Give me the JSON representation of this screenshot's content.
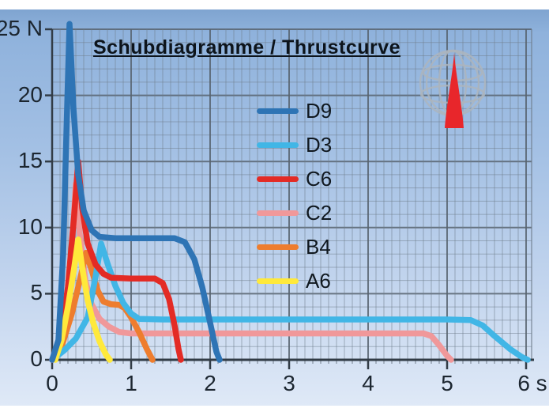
{
  "slide": {
    "background_top_color": "#8fb2dc",
    "background_bottom_color": "#dfe9f7",
    "page_border_color": "#ffffff"
  },
  "logo": {
    "globe_color": "#adb5bd",
    "rocket_color": "#e8262b"
  },
  "chart_data": {
    "type": "line",
    "title": "Schubdiagramme / Thrustcurve",
    "xlabel": "s",
    "ylabel": "N",
    "xlim": [
      0,
      6.07
    ],
    "ylim": [
      0,
      25
    ],
    "x_ticks": [
      0,
      1,
      2,
      3,
      4,
      5,
      6
    ],
    "x_tick_labels": [
      "0",
      "1",
      "2",
      "3",
      "4",
      "5",
      "6 s"
    ],
    "y_ticks": [
      0,
      5,
      10,
      15,
      20,
      25
    ],
    "y_tick_labels": [
      "0",
      "5",
      "10",
      "15",
      "20",
      "25 N"
    ],
    "minor_x_step": 0.1,
    "minor_y_step": 1,
    "grid": {
      "minor_color": "#6e7b89",
      "major_color": "#57636f",
      "axis_color": "#323c46"
    },
    "legend_position": "upper-middle",
    "z_order": [
      "C2",
      "B4",
      "D3",
      "C6",
      "A6",
      "D9"
    ],
    "series": [
      {
        "name": "D9",
        "color": "#2e74b5",
        "peak_thrust_n": 25.4,
        "peak_time_s": 0.22,
        "sustain_thrust_n": 9.2,
        "burn_time_s": 2.12,
        "points": [
          [
            0,
            0
          ],
          [
            0.08,
            1.5
          ],
          [
            0.14,
            8
          ],
          [
            0.18,
            17
          ],
          [
            0.22,
            25.4
          ],
          [
            0.27,
            19
          ],
          [
            0.33,
            14
          ],
          [
            0.4,
            11.3
          ],
          [
            0.5,
            9.8
          ],
          [
            0.6,
            9.3
          ],
          [
            0.8,
            9.2
          ],
          [
            1.2,
            9.2
          ],
          [
            1.55,
            9.2
          ],
          [
            1.68,
            8.9
          ],
          [
            1.8,
            7.6
          ],
          [
            1.9,
            5.5
          ],
          [
            2.0,
            2.8
          ],
          [
            2.08,
            0.6
          ],
          [
            2.12,
            0
          ]
        ]
      },
      {
        "name": "D3",
        "color": "#41b6e6",
        "peak_thrust_n": 8.8,
        "peak_time_s": 0.62,
        "sustain_thrust_n": 3.05,
        "burn_time_s": 6.02,
        "points": [
          [
            0,
            0
          ],
          [
            0.15,
            0.7
          ],
          [
            0.3,
            1.6
          ],
          [
            0.45,
            3.2
          ],
          [
            0.55,
            6.3
          ],
          [
            0.62,
            8.8
          ],
          [
            0.7,
            7.3
          ],
          [
            0.8,
            5.6
          ],
          [
            0.9,
            4.3
          ],
          [
            1.0,
            3.5
          ],
          [
            1.1,
            3.1
          ],
          [
            1.4,
            3.05
          ],
          [
            3.0,
            3.05
          ],
          [
            5.0,
            3.05
          ],
          [
            5.3,
            3.0
          ],
          [
            5.45,
            2.6
          ],
          [
            5.6,
            1.8
          ],
          [
            5.8,
            0.8
          ],
          [
            5.95,
            0.2
          ],
          [
            6.02,
            0
          ]
        ]
      },
      {
        "name": "C6",
        "color": "#e32b25",
        "peak_thrust_n": 15.0,
        "peak_time_s": 0.33,
        "sustain_thrust_n": 6.15,
        "burn_time_s": 1.63,
        "points": [
          [
            0,
            0
          ],
          [
            0.1,
            1.2
          ],
          [
            0.2,
            5.5
          ],
          [
            0.28,
            11
          ],
          [
            0.33,
            15
          ],
          [
            0.38,
            11.5
          ],
          [
            0.45,
            8.8
          ],
          [
            0.55,
            7.2
          ],
          [
            0.65,
            6.5
          ],
          [
            0.75,
            6.2
          ],
          [
            1.0,
            6.15
          ],
          [
            1.3,
            6.15
          ],
          [
            1.4,
            5.8
          ],
          [
            1.48,
            4.6
          ],
          [
            1.55,
            2.6
          ],
          [
            1.6,
            0.8
          ],
          [
            1.63,
            0
          ]
        ]
      },
      {
        "name": "C2",
        "color": "#f0989a",
        "peak_thrust_n": 13.3,
        "peak_time_s": 0.3,
        "sustain_thrust_n": 2.0,
        "burn_time_s": 5.05,
        "points": [
          [
            0,
            0
          ],
          [
            0.1,
            1
          ],
          [
            0.2,
            5
          ],
          [
            0.26,
            9.5
          ],
          [
            0.3,
            13.3
          ],
          [
            0.35,
            9.5
          ],
          [
            0.42,
            6
          ],
          [
            0.5,
            4.2
          ],
          [
            0.6,
            3.1
          ],
          [
            0.72,
            2.5
          ],
          [
            0.85,
            2.1
          ],
          [
            1.0,
            2.0
          ],
          [
            2.0,
            2.0
          ],
          [
            3.0,
            2.0
          ],
          [
            4.0,
            2.0
          ],
          [
            4.7,
            2.0
          ],
          [
            4.8,
            1.8
          ],
          [
            4.9,
            1.1
          ],
          [
            5.0,
            0.3
          ],
          [
            5.05,
            0
          ]
        ]
      },
      {
        "name": "B4",
        "color": "#ee7d2e",
        "peak_thrust_n": 8.1,
        "peak_time_s": 0.43,
        "sustain_thrust_n": 4.15,
        "burn_time_s": 1.27,
        "points": [
          [
            0,
            0
          ],
          [
            0.12,
            1
          ],
          [
            0.25,
            3.5
          ],
          [
            0.35,
            6
          ],
          [
            0.43,
            8.1
          ],
          [
            0.5,
            6.8
          ],
          [
            0.58,
            5.2
          ],
          [
            0.65,
            4.4
          ],
          [
            0.75,
            4.2
          ],
          [
            0.85,
            4.15
          ],
          [
            0.92,
            3.9
          ],
          [
            1.0,
            3.2
          ],
          [
            1.1,
            2.1
          ],
          [
            1.2,
            0.8
          ],
          [
            1.27,
            0
          ]
        ]
      },
      {
        "name": "A6",
        "color": "#ffe93b",
        "peak_thrust_n": 9.1,
        "peak_time_s": 0.33,
        "sustain_thrust_n": 0,
        "burn_time_s": 0.73,
        "points": [
          [
            0.04,
            0
          ],
          [
            0.12,
            1.5
          ],
          [
            0.2,
            4
          ],
          [
            0.28,
            7
          ],
          [
            0.33,
            9.1
          ],
          [
            0.38,
            7
          ],
          [
            0.45,
            4.5
          ],
          [
            0.52,
            2.8
          ],
          [
            0.6,
            1.4
          ],
          [
            0.68,
            0.4
          ],
          [
            0.73,
            0
          ]
        ]
      }
    ]
  }
}
